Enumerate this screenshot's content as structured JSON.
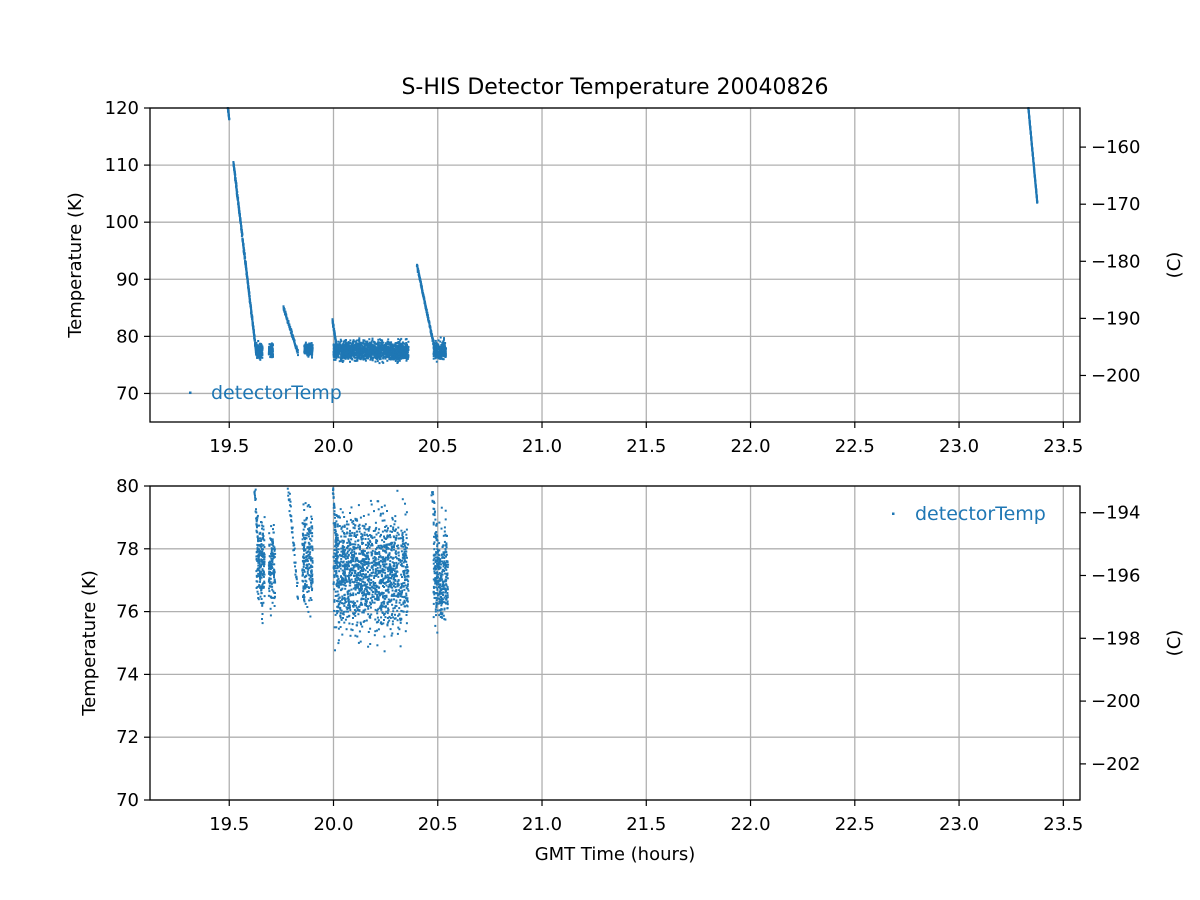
{
  "chart_data": {
    "type": "scatter",
    "title": "S-HIS Detector Temperature 20040826",
    "xlabel": "GMT Time (hours)",
    "colors": {
      "series": "#1f77b4",
      "grid": "#b0b0b0",
      "axes": "#000000",
      "background": "#ffffff"
    },
    "grid": true,
    "panels": [
      {
        "ylabel": "Temperature (K)",
        "ylabel_right": "(C)",
        "xlim": [
          19.12,
          23.58
        ],
        "ylim": [
          65,
          120
        ],
        "x_ticks": [
          "19.5",
          "20.0",
          "20.5",
          "21.0",
          "21.5",
          "22.0",
          "22.5",
          "23.0",
          "23.5"
        ],
        "y_ticks": [
          "70",
          "80",
          "90",
          "100",
          "110",
          "120"
        ],
        "y_ticks_right": [
          "−200",
          "−190",
          "−180",
          "−170",
          "−160"
        ],
        "legend": {
          "label": "detectorTemp",
          "loc": "lower left"
        },
        "series": [
          {
            "name": "detectorTemp",
            "segments": [
              {
                "type": "ramp",
                "x": [
                  19.49,
                  19.5
                ],
                "y": [
                  121,
                  118
                ]
              },
              {
                "type": "ramp",
                "x": [
                  19.52,
                  19.63
                ],
                "y": [
                  110.5,
                  77
                ],
                "noise": 0.7
              },
              {
                "type": "band",
                "x": [
                  19.63,
                  19.66
                ],
                "y": [
                  75.5,
                  79.5
                ]
              },
              {
                "type": "band",
                "x": [
                  19.69,
                  19.71
                ],
                "y": [
                  75.5,
                  79.5
                ]
              },
              {
                "type": "ramp",
                "x": [
                  19.76,
                  19.83
                ],
                "y": [
                  85,
                  77
                ],
                "noise": 0.6
              },
              {
                "type": "band",
                "x": [
                  19.86,
                  19.9
                ],
                "y": [
                  76,
                  79.5
                ]
              },
              {
                "type": "ramp",
                "x": [
                  19.995,
                  20.02
                ],
                "y": [
                  82.8,
                  77
                ],
                "noise": 0.6
              },
              {
                "type": "band",
                "x": [
                  20.0,
                  20.36
                ],
                "y": [
                  75,
                  80
                ]
              },
              {
                "type": "ramp",
                "x": [
                  20.4,
                  20.49
                ],
                "y": [
                  92.5,
                  77
                ],
                "noise": 0.6
              },
              {
                "type": "band",
                "x": [
                  20.48,
                  20.54
                ],
                "y": [
                  75,
                  80
                ]
              },
              {
                "type": "ramp",
                "x": [
                  23.33,
                  23.375
                ],
                "y": [
                  121,
                  103.5
                ],
                "noise": 0.4
              }
            ]
          }
        ]
      },
      {
        "ylabel": "Temperature (K)",
        "ylabel_right": "(C)",
        "xlim": [
          19.12,
          23.58
        ],
        "ylim": [
          70,
          80
        ],
        "x_ticks": [
          "19.5",
          "20.0",
          "20.5",
          "21.0",
          "21.5",
          "22.0",
          "22.5",
          "23.0",
          "23.5"
        ],
        "y_ticks": [
          "70",
          "72",
          "74",
          "76",
          "78",
          "80"
        ],
        "y_ticks_right": [
          "−202",
          "−200",
          "−198",
          "−196",
          "−194"
        ],
        "legend": {
          "label": "detectorTemp",
          "loc": "upper right"
        },
        "series": [
          {
            "name": "detectorTemp",
            "segments": [
              {
                "type": "ramp",
                "x": [
                  19.62,
                  19.66
                ],
                "y": [
                  80.2,
                  76
                ],
                "noise": 0.6
              },
              {
                "type": "band",
                "x": [
                  19.63,
                  19.67
                ],
                "y": [
                  75.8,
                  79.5
                ]
              },
              {
                "type": "band",
                "x": [
                  19.69,
                  19.72
                ],
                "y": [
                  75.8,
                  79.0
                ]
              },
              {
                "type": "ramp",
                "x": [
                  19.78,
                  19.83
                ],
                "y": [
                  80.2,
                  76.5
                ],
                "noise": 0.5
              },
              {
                "type": "band",
                "x": [
                  19.85,
                  19.9
                ],
                "y": [
                  75.5,
                  80
                ]
              },
              {
                "type": "ramp",
                "x": [
                  19.995,
                  20.02
                ],
                "y": [
                  80.2,
                  77.5
                ],
                "noise": 0.4
              },
              {
                "type": "band",
                "x": [
                  20.0,
                  20.36
                ],
                "y": [
                  74.5,
                  80
                ]
              },
              {
                "type": "ramp",
                "x": [
                  20.47,
                  20.52
                ],
                "y": [
                  80.2,
                  76.5
                ],
                "noise": 0.6
              },
              {
                "type": "band",
                "x": [
                  20.48,
                  20.55
                ],
                "y": [
                  74.8,
                  79.5
                ]
              }
            ]
          }
        ]
      }
    ]
  }
}
